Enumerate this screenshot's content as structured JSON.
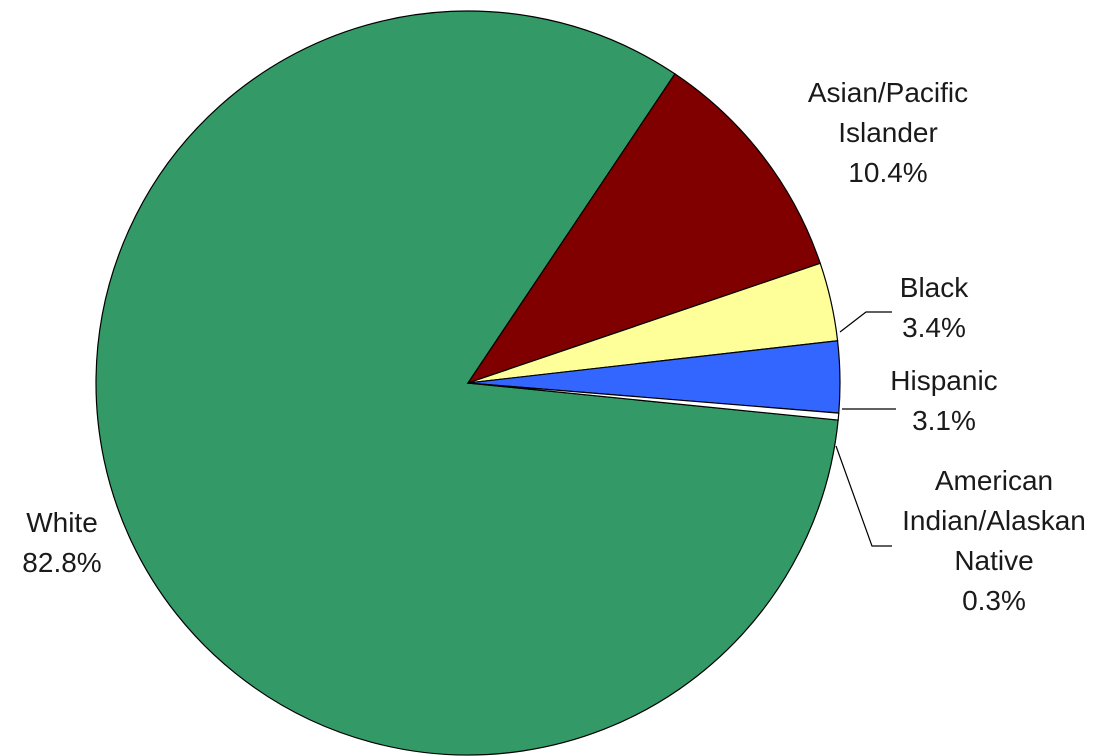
{
  "chart_data": {
    "type": "pie",
    "title": "",
    "start_angle_deg": 0,
    "direction": "clockwise",
    "slices": [
      {
        "key": "white",
        "label_lines": [
          "White",
          "82.8%"
        ],
        "name": "White",
        "value": 82.8,
        "color": "#339966"
      },
      {
        "key": "asian",
        "label_lines": [
          "Asian/Pacific",
          "Islander",
          "10.4%"
        ],
        "name": "Asian/Pacific Islander",
        "value": 10.4,
        "color": "#800000"
      },
      {
        "key": "black",
        "label_lines": [
          "Black",
          "3.4%"
        ],
        "name": "Black",
        "value": 3.4,
        "color": "#FFFF99"
      },
      {
        "key": "hispanic",
        "label_lines": [
          "Hispanic",
          "3.1%"
        ],
        "name": "Hispanic",
        "value": 3.1,
        "color": "#3366FF"
      },
      {
        "key": "american-indian",
        "label_lines": [
          "American",
          "Indian/Alaskan",
          "Native",
          "0.3%"
        ],
        "name": "American Indian/Alaskan Native",
        "value": 0.3,
        "color": "#FFFFFF"
      }
    ]
  }
}
